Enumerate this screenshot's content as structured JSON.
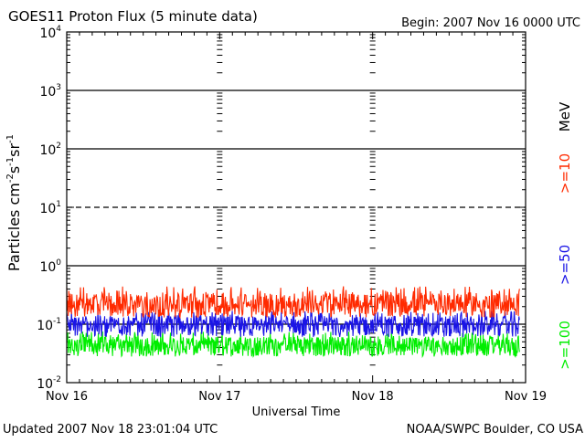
{
  "chart_data": {
    "type": "line",
    "title": "GOES11 Proton Flux (5 minute data)",
    "begin_label": "Begin: 2007 Nov 16 0000 UTC",
    "xlabel": "Universal Time",
    "ylabel": {
      "base": "Particles cm",
      "exp1": "-2",
      "mid1": "s",
      "exp2": "-1",
      "mid2": "sr",
      "exp3": "-1"
    },
    "x_ticks": [
      "Nov 16",
      "Nov 17",
      "Nov 18",
      "Nov 19"
    ],
    "x_range_days": [
      0,
      3
    ],
    "y_scale": "log",
    "ylim": [
      0.01,
      10000
    ],
    "y_ticks": [
      {
        "value": 0.01,
        "base": "10",
        "exp": "-2"
      },
      {
        "value": 0.1,
        "base": "10",
        "exp": "-1"
      },
      {
        "value": 1,
        "base": "10",
        "exp": "0"
      },
      {
        "value": 10,
        "base": "10",
        "exp": "1"
      },
      {
        "value": 100,
        "base": "10",
        "exp": "2"
      },
      {
        "value": 1000,
        "base": "10",
        "exp": "3"
      },
      {
        "value": 10000,
        "base": "10",
        "exp": "4"
      }
    ],
    "dashed_threshold": 10,
    "solid_lines": [
      0.1,
      1,
      100,
      1000
    ],
    "unit_label": "MeV",
    "series": [
      {
        "name": ">=10",
        "color": "#ff2a00",
        "base_value": 0.22,
        "spread_lo": 0.13,
        "spread_hi": 0.45
      },
      {
        "name": ">=50",
        "color": "#1a14e6",
        "base_value": 0.1,
        "spread_lo": 0.06,
        "spread_hi": 0.17
      },
      {
        "name": ">=100",
        "color": "#00ee00",
        "base_value": 0.045,
        "spread_lo": 0.028,
        "spread_hi": 0.075
      }
    ],
    "footer_left": "Updated 2007 Nov 18 23:01:04 UTC",
    "footer_right": "NOAA/SWPC Boulder, CO USA"
  }
}
